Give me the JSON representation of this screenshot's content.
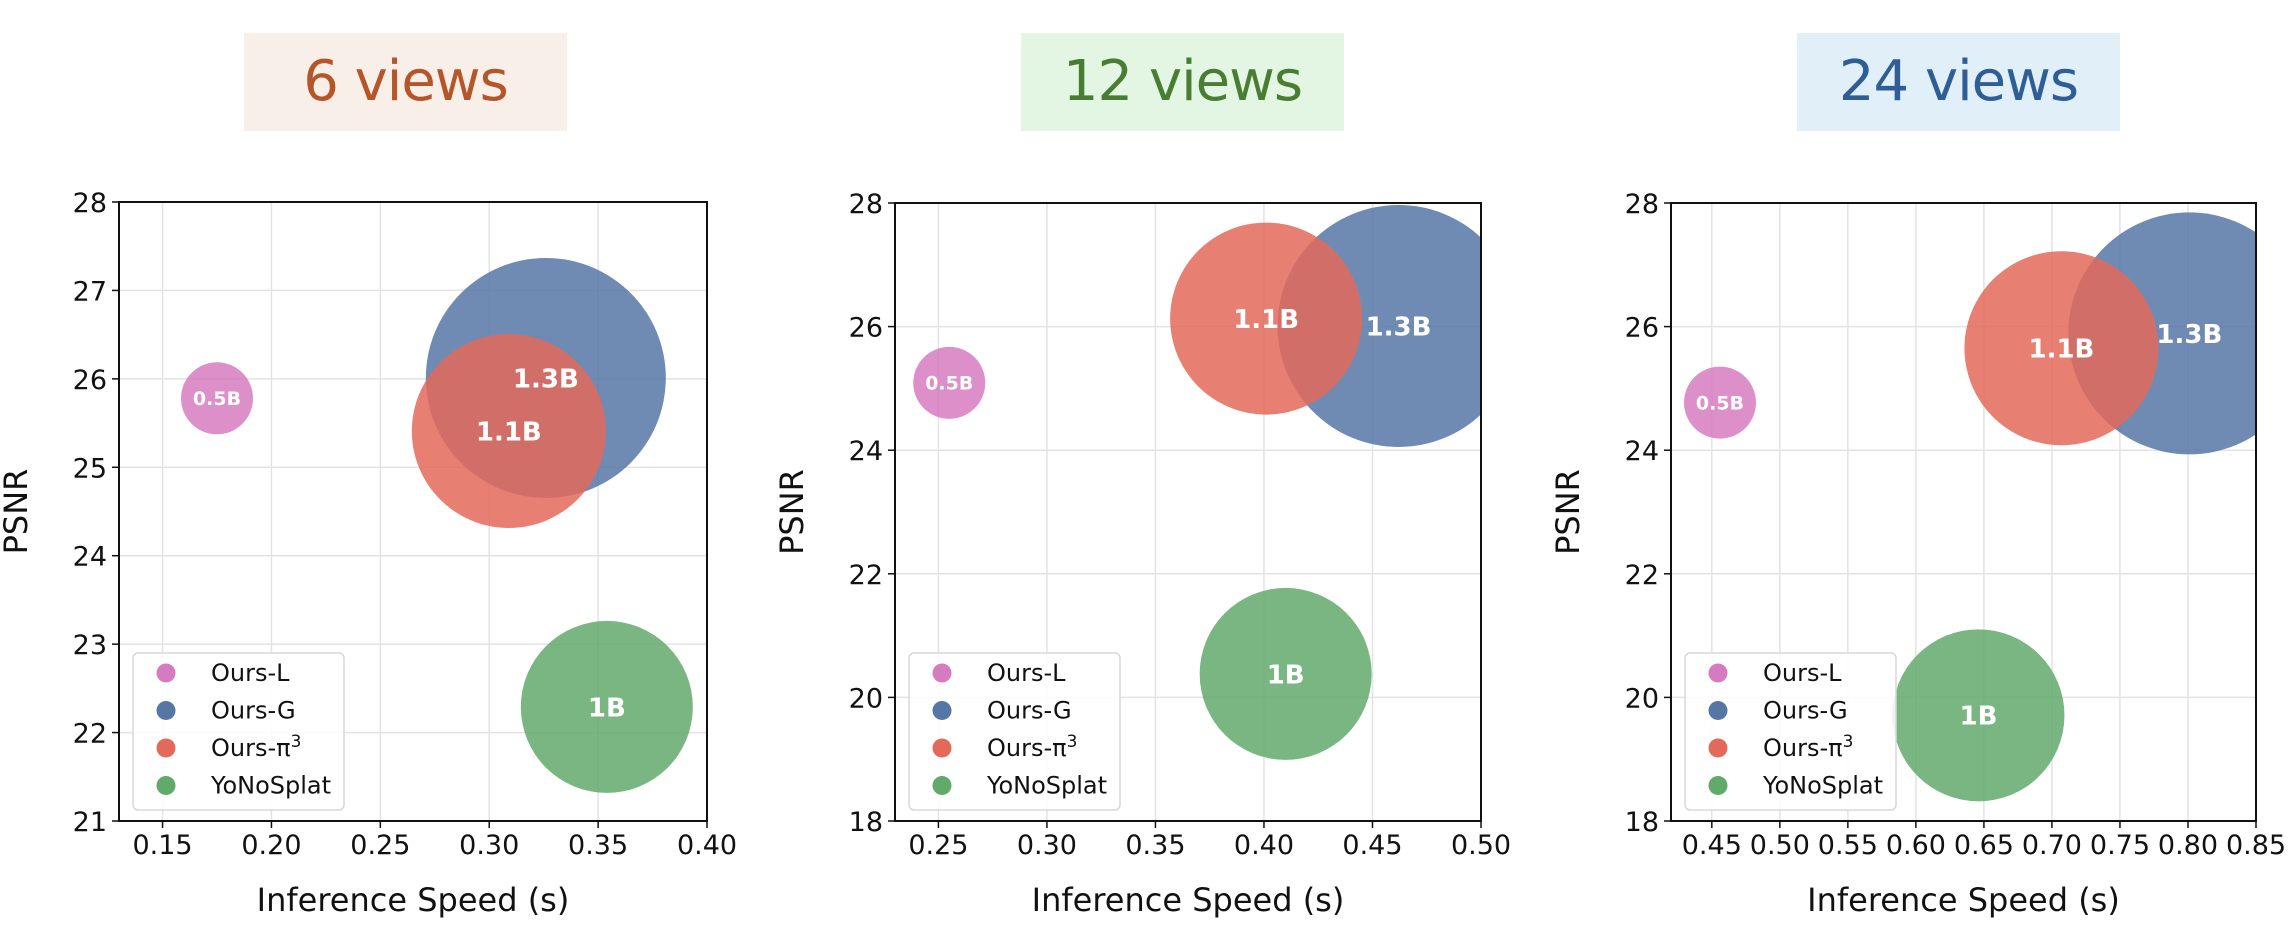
{
  "panels": [
    {
      "title": "6 views",
      "title_color": "#b5562a",
      "title_bg": "#f9efe9"
    },
    {
      "title": "12 views",
      "title_color": "#4a7d34",
      "title_bg": "#e3f6e4"
    },
    {
      "title": "24 views",
      "title_color": "#2f5e96",
      "title_bg": "#e1f0f8"
    }
  ],
  "legend": [
    {
      "label": "Ours-L",
      "color": "#d67bbf"
    },
    {
      "label": "Ours-G",
      "color": "#5677a6"
    },
    {
      "label": "Ours-π",
      "sup": "3",
      "color": "#e4695a"
    },
    {
      "label": "YoNoSplat",
      "color": "#62a96c"
    }
  ],
  "chart_data": [
    {
      "type": "scatter",
      "title": "6 views",
      "xlabel": "Inference Speed (s)",
      "ylabel": "PSNR",
      "xlim": [
        0.13,
        0.4
      ],
      "ylim": [
        21,
        28
      ],
      "xticks": [
        "0.15",
        "0.20",
        "0.25",
        "0.30",
        "0.35",
        "0.40"
      ],
      "yticks": [
        "21",
        "22",
        "23",
        "24",
        "25",
        "26",
        "27",
        "28"
      ],
      "grid": true,
      "legend_position": "lower left",
      "series": [
        {
          "name": "Ours-L",
          "x": 0.175,
          "y": 25.78,
          "size_label": "0.5B",
          "radius_px": 36
        },
        {
          "name": "Ours-G",
          "x": 0.326,
          "y": 26.01,
          "size_label": "1.3B",
          "radius_px": 120
        },
        {
          "name": "Ours-π³",
          "x": 0.309,
          "y": 25.41,
          "size_label": "1.1B",
          "radius_px": 97
        },
        {
          "name": "YoNoSplat",
          "x": 0.354,
          "y": 22.29,
          "size_label": "1B",
          "radius_px": 86
        }
      ]
    },
    {
      "type": "scatter",
      "title": "12 views",
      "xlabel": "Inference Speed (s)",
      "ylabel": "PSNR",
      "xlim": [
        0.23,
        0.5
      ],
      "ylim": [
        18,
        28
      ],
      "xticks": [
        "0.25",
        "0.30",
        "0.35",
        "0.40",
        "0.45",
        "0.50"
      ],
      "yticks": [
        "18",
        "20",
        "22",
        "24",
        "26",
        "28"
      ],
      "grid": true,
      "legend_position": "lower left",
      "series": [
        {
          "name": "Ours-L",
          "x": 0.255,
          "y": 25.09,
          "size_label": "0.5B",
          "radius_px": 36
        },
        {
          "name": "Ours-G",
          "x": 0.462,
          "y": 26.01,
          "size_label": "1.3B",
          "radius_px": 121
        },
        {
          "name": "Ours-π³",
          "x": 0.401,
          "y": 26.13,
          "size_label": "1.1B",
          "radius_px": 96
        },
        {
          "name": "YoNoSplat",
          "x": 0.41,
          "y": 20.38,
          "size_label": "1B",
          "radius_px": 86
        }
      ]
    },
    {
      "type": "scatter",
      "title": "24 views",
      "xlabel": "Inference Speed (s)",
      "ylabel": "PSNR",
      "xlim": [
        0.42,
        0.85
      ],
      "ylim": [
        18,
        28
      ],
      "xticks": [
        "0.45",
        "0.50",
        "0.55",
        "0.60",
        "0.65",
        "0.70",
        "0.75",
        "0.80",
        "0.85"
      ],
      "yticks": [
        "18",
        "20",
        "22",
        "24",
        "26",
        "28"
      ],
      "grid": true,
      "legend_position": "lower left",
      "series": [
        {
          "name": "Ours-L",
          "x": 0.456,
          "y": 24.77,
          "size_label": "0.5B",
          "radius_px": 36
        },
        {
          "name": "Ours-G",
          "x": 0.801,
          "y": 25.89,
          "size_label": "1.3B",
          "radius_px": 121
        },
        {
          "name": "Ours-π³",
          "x": 0.707,
          "y": 25.65,
          "size_label": "1.1B",
          "radius_px": 97
        },
        {
          "name": "YoNoSplat",
          "x": 0.646,
          "y": 19.71,
          "size_label": "1B",
          "radius_px": 86
        }
      ]
    }
  ]
}
